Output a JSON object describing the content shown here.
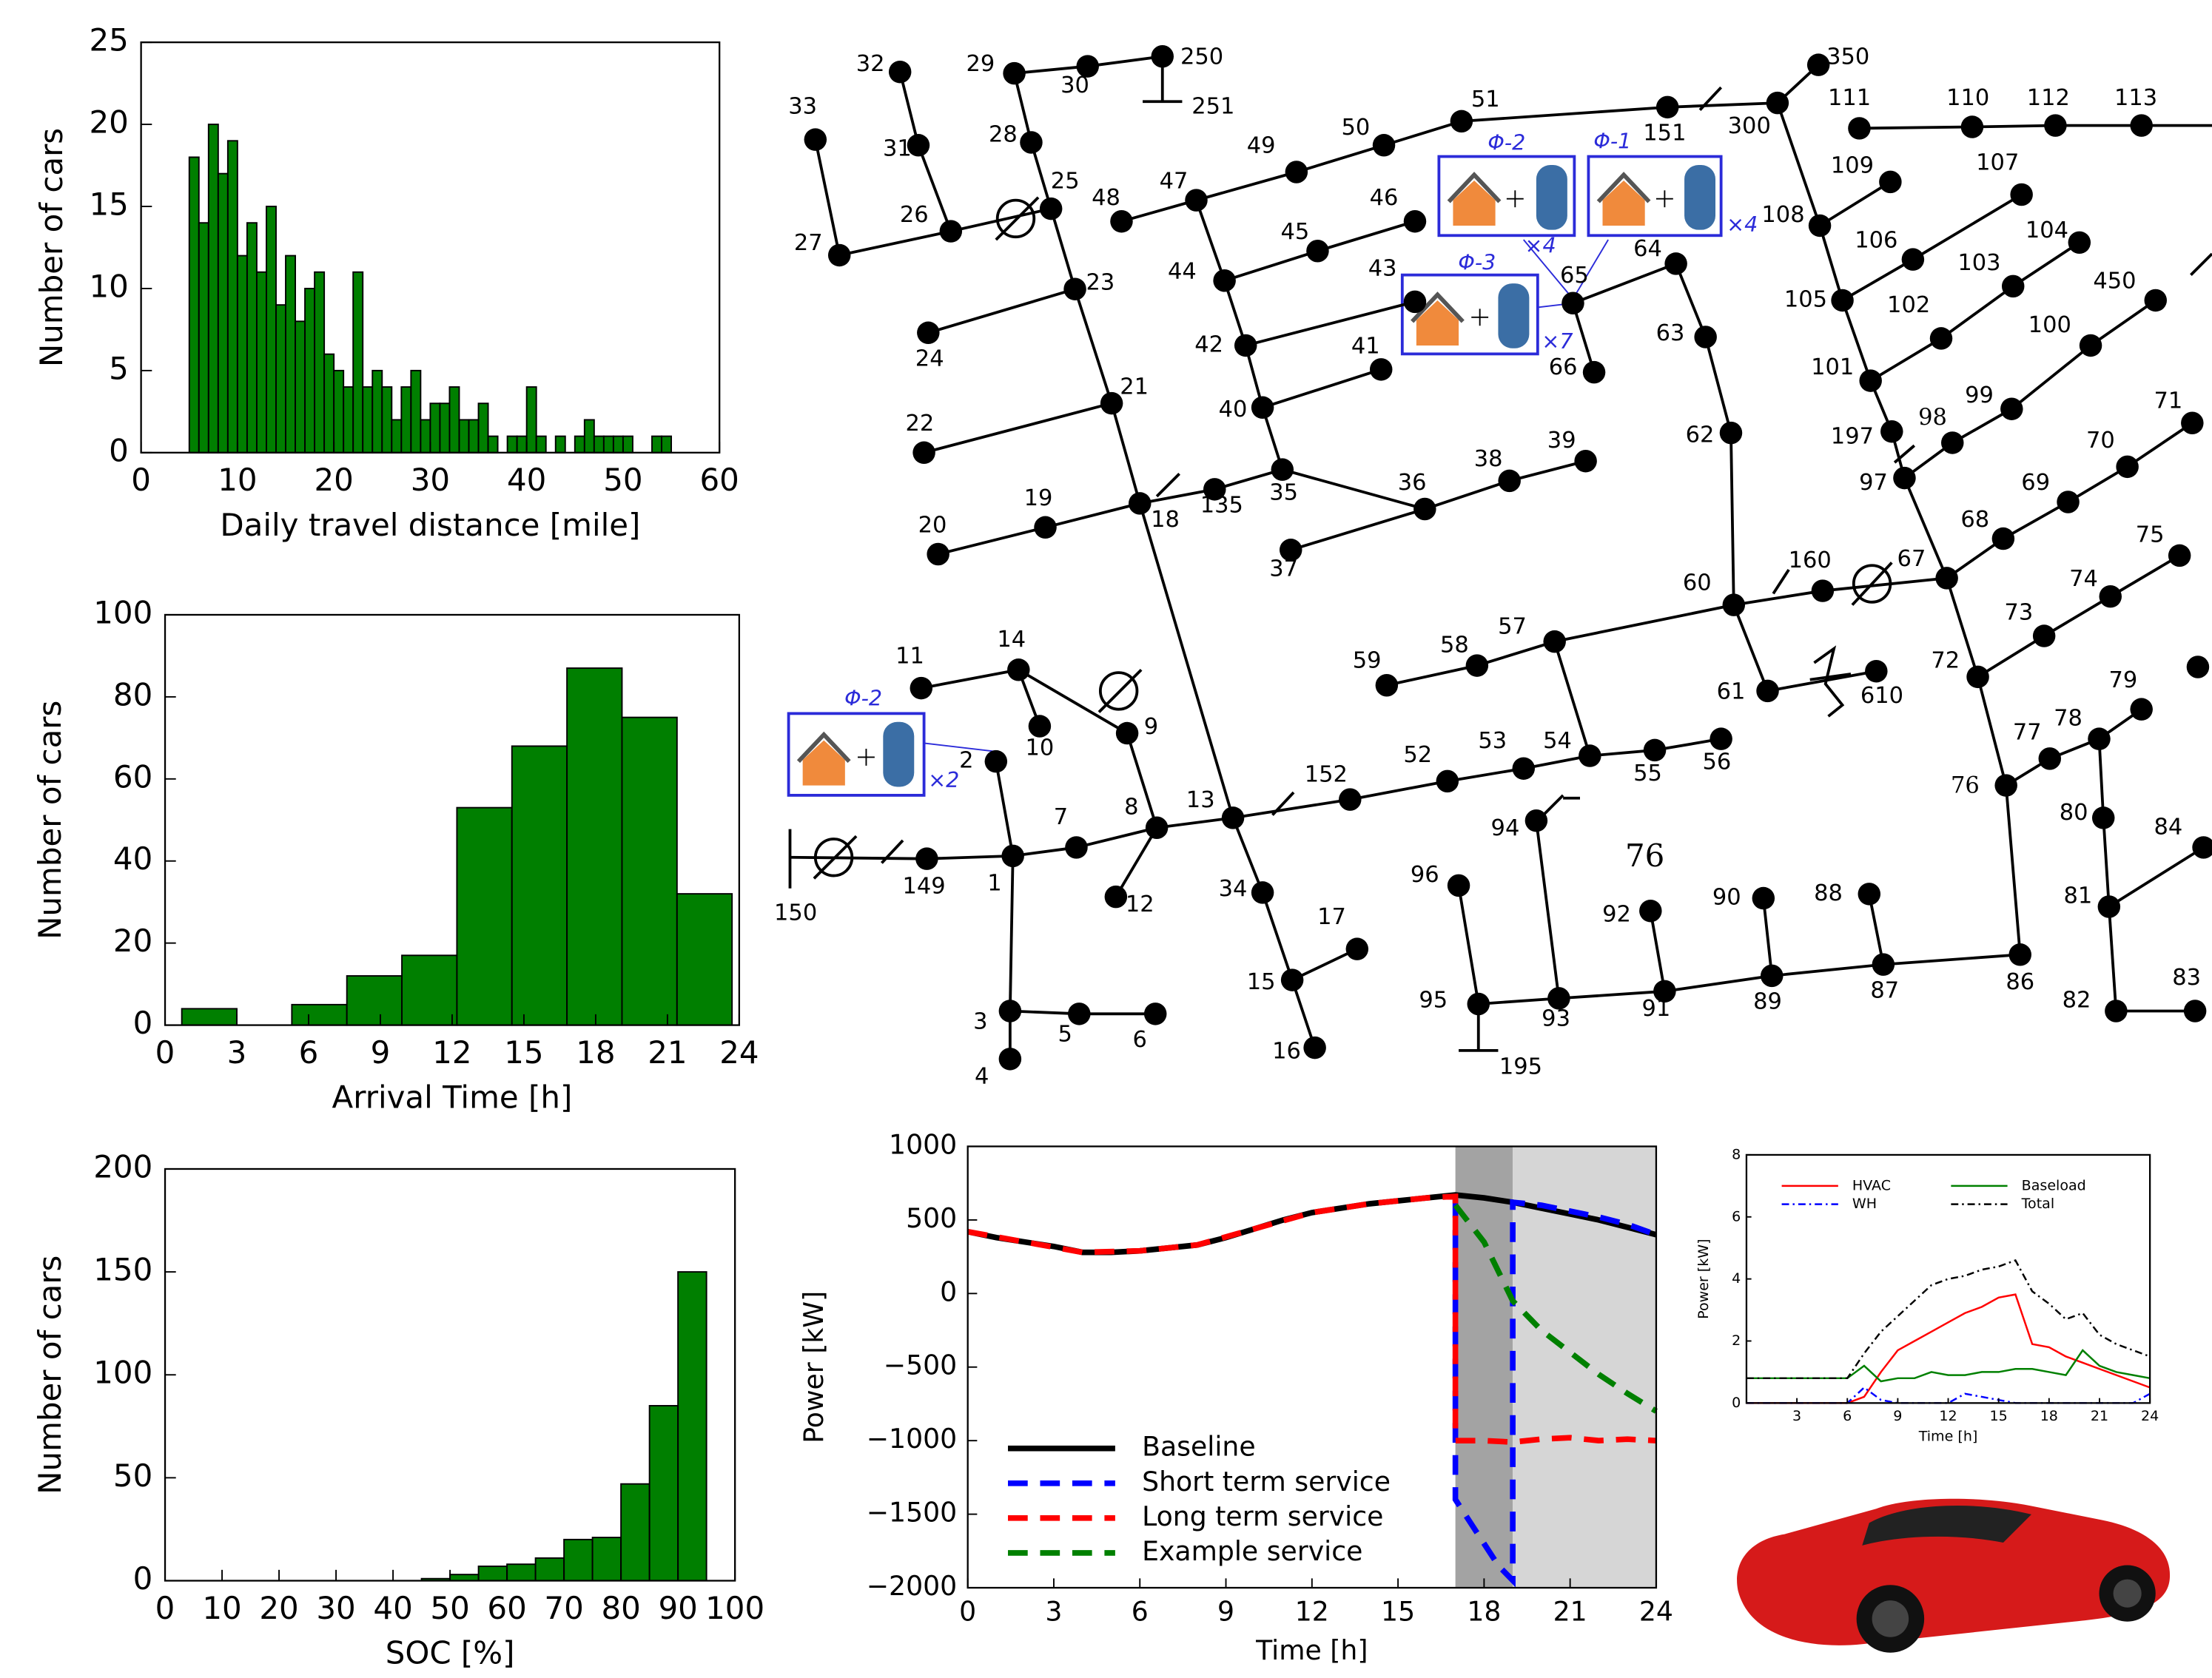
{
  "chart_data": [
    {
      "type": "histogram",
      "xlabel": "Daily travel distance [mile]",
      "ylabel": "Number of cars",
      "color": "#007f00",
      "bins": [
        5,
        6,
        7,
        8,
        9,
        10,
        11,
        12,
        13,
        14,
        15,
        16,
        17,
        18,
        19,
        20,
        21,
        22,
        23,
        24,
        25,
        26,
        27,
        28,
        29,
        30,
        31,
        32,
        33,
        34,
        35,
        36,
        37,
        38,
        39,
        40,
        41,
        42,
        43,
        44,
        45,
        46,
        47,
        48,
        49,
        50,
        51,
        52,
        53,
        54,
        55
      ],
      "values": [
        18,
        14,
        20,
        17,
        19,
        12,
        14,
        11,
        15,
        9,
        12,
        8,
        10,
        11,
        6,
        5,
        4,
        11,
        4,
        5,
        4,
        2,
        4,
        5,
        2,
        3,
        3,
        4,
        2,
        2,
        3,
        1,
        0,
        1,
        1,
        4,
        1,
        0,
        1,
        0,
        1,
        2,
        1,
        1,
        1,
        1,
        0,
        0,
        1,
        1
      ],
      "xlim": [
        0,
        60
      ],
      "xticks": [
        0,
        10,
        20,
        30,
        40,
        50,
        60
      ],
      "ylim": [
        0,
        25
      ],
      "yticks": [
        0,
        5,
        10,
        15,
        20,
        25
      ]
    },
    {
      "type": "histogram",
      "xlabel": "Arrival Time [h]",
      "ylabel": "Number of cars",
      "color": "#007f00",
      "bins": [
        0.7,
        3.0,
        5.3,
        7.6,
        9.9,
        12.2,
        14.5,
        16.8,
        19.1,
        21.4,
        23.7
      ],
      "values": [
        4,
        0,
        5,
        12,
        17,
        53,
        68,
        87,
        75,
        32
      ],
      "xlim": [
        0,
        24
      ],
      "xticks": [
        0,
        3,
        6,
        9,
        12,
        15,
        18,
        21,
        24
      ],
      "ylim": [
        0,
        100
      ],
      "yticks": [
        0,
        20,
        40,
        60,
        80,
        100
      ]
    },
    {
      "type": "histogram",
      "xlabel": "SOC [%]",
      "ylabel": "Number of cars",
      "color": "#007f00",
      "bins": [
        45,
        50,
        55,
        60,
        65,
        70,
        75,
        80,
        85,
        90,
        95
      ],
      "values": [
        1,
        3,
        7,
        8,
        11,
        20,
        21,
        47,
        85,
        150
      ],
      "xlim": [
        0,
        100
      ],
      "xticks": [
        0,
        10,
        20,
        30,
        40,
        50,
        60,
        70,
        80,
        90,
        100
      ],
      "ylim": [
        0,
        200
      ],
      "yticks": [
        0,
        50,
        100,
        150,
        200
      ]
    },
    {
      "type": "line",
      "xlabel": "Time [h]",
      "ylabel": "Power [kW]",
      "legend": "lower left",
      "spans": [
        {
          "from": 17,
          "to": 19,
          "color": "#a3a3a3"
        },
        {
          "from": 19,
          "to": 24,
          "color": "#d6d6d6"
        }
      ],
      "xlim": [
        0,
        24
      ],
      "xticks": [
        0,
        3,
        6,
        9,
        12,
        15,
        18,
        21,
        24
      ],
      "ylim": [
        -2000,
        1000
      ],
      "yticks": [
        {
          "value": -2000,
          "label": "−2000"
        },
        {
          "value": -1500,
          "label": "−1500"
        },
        {
          "value": -1000,
          "label": "−1000"
        },
        {
          "value": -500,
          "label": "−500"
        },
        0,
        500,
        1000
      ],
      "series": [
        {
          "name": "Baseline",
          "color": "#000000",
          "line_style": "solid",
          "x": [
            0,
            1,
            2,
            3,
            4,
            5,
            6,
            7,
            8,
            9,
            10,
            11,
            12,
            13,
            14,
            15,
            16,
            17,
            18,
            19,
            20,
            21,
            22,
            23,
            24
          ],
          "values": [
            420,
            380,
            350,
            320,
            280,
            280,
            290,
            310,
            330,
            380,
            440,
            500,
            550,
            580,
            610,
            630,
            650,
            670,
            650,
            620,
            580,
            540,
            500,
            450,
            400
          ]
        },
        {
          "name": "Short term service",
          "color": "#0000ff",
          "line_style": "dashed",
          "x": [
            17,
            17,
            17.5,
            18,
            18.5,
            19,
            19,
            20,
            21,
            22,
            23,
            24
          ],
          "values": [
            650,
            -1400,
            -1550,
            -1700,
            -1850,
            -1950,
            620,
            600,
            560,
            520,
            470,
            400
          ]
        },
        {
          "name": "Long term service",
          "color": "#ff0000",
          "line_style": "dashed",
          "x": [
            0,
            2,
            4,
            6,
            8,
            10,
            12,
            14,
            16,
            17,
            17,
            18,
            19,
            20,
            21,
            22,
            23,
            24
          ],
          "values": [
            420,
            350,
            280,
            290,
            330,
            440,
            550,
            610,
            650,
            660,
            -1000,
            -1000,
            -1010,
            -990,
            -980,
            -1000,
            -990,
            -1000
          ]
        },
        {
          "name": "Example service",
          "color": "#008000",
          "line_style": "dashed",
          "x": [
            17,
            18,
            19,
            20,
            21,
            22,
            23,
            24
          ],
          "values": [
            600,
            350,
            -50,
            -250,
            -400,
            -550,
            -680,
            -800
          ]
        }
      ]
    },
    {
      "type": "line",
      "xlabel": "Time [h]",
      "ylabel": "Power [kW]",
      "legend": "upper center",
      "legend_columns": 2,
      "x": [
        0,
        1,
        2,
        3,
        4,
        5,
        6,
        7,
        8,
        9,
        10,
        11,
        12,
        13,
        14,
        15,
        16,
        17,
        18,
        19,
        20,
        21,
        22,
        23,
        24
      ],
      "xlim": [
        0,
        24
      ],
      "xticks": [
        3,
        6,
        9,
        12,
        15,
        18,
        21,
        24
      ],
      "ylim": [
        0,
        8
      ],
      "yticks": [
        0,
        2,
        4,
        6,
        8
      ],
      "series": [
        {
          "name": "HVAC",
          "color": "#ff0000",
          "line_style": "solid",
          "values": [
            0,
            0,
            0,
            0,
            0,
            0,
            0,
            0.2,
            1,
            1.7,
            2,
            2.3,
            2.6,
            2.9,
            3.1,
            3.4,
            3.5,
            1.9,
            1.8,
            1.5,
            1.3,
            1.1,
            0.9,
            0.7,
            0.5
          ]
        },
        {
          "name": "WH",
          "color": "#0000ff",
          "line_style": "dashdot",
          "values": [
            0,
            0,
            0,
            0,
            0,
            0,
            0,
            0.5,
            0.1,
            0,
            0,
            0,
            0,
            0.3,
            0.2,
            0.1,
            0,
            0,
            0,
            0,
            0,
            0,
            0,
            0,
            0.3
          ]
        },
        {
          "name": "Baseload",
          "color": "#008000",
          "line_style": "solid",
          "values": [
            0.8,
            0.8,
            0.8,
            0.8,
            0.8,
            0.8,
            0.8,
            1.2,
            0.7,
            0.8,
            0.8,
            1,
            0.9,
            0.9,
            1,
            1,
            1.1,
            1.1,
            1,
            0.9,
            1.7,
            1.2,
            1,
            0.9,
            0.8
          ]
        },
        {
          "name": "Total",
          "color": "#000000",
          "line_style": "dashdot",
          "values": [
            0.8,
            0.8,
            0.8,
            0.8,
            0.8,
            0.8,
            0.8,
            1.6,
            2.3,
            2.8,
            3.3,
            3.8,
            4.0,
            4.1,
            4.3,
            4.4,
            4.6,
            3.6,
            3.2,
            2.7,
            2.9,
            2.2,
            1.9,
            1.7,
            1.5
          ]
        }
      ]
    }
  ],
  "diagram": {
    "nodes": [
      "1",
      "2",
      "3",
      "4",
      "5",
      "6",
      "7",
      "8",
      "9",
      "10",
      "11",
      "12",
      "13",
      "14",
      "15",
      "16",
      "17",
      "18",
      "19",
      "20",
      "21",
      "22",
      "23",
      "24",
      "25",
      "26",
      "27",
      "28",
      "29",
      "30",
      "31",
      "32",
      "33",
      "34",
      "35",
      "36",
      "37",
      "38",
      "39",
      "40",
      "41",
      "42",
      "43",
      "44",
      "45",
      "46",
      "47",
      "48",
      "49",
      "50",
      "51",
      "52",
      "53",
      "54",
      "55",
      "56",
      "57",
      "58",
      "59",
      "60",
      "61",
      "62",
      "63",
      "64",
      "65",
      "66",
      "67",
      "68",
      "69",
      "70",
      "71",
      "72",
      "73",
      "74",
      "75",
      "76",
      "77",
      "78",
      "79",
      "80",
      "81",
      "82",
      "83",
      "84",
      "86",
      "87",
      "88",
      "89",
      "90",
      "91",
      "92",
      "93",
      "94",
      "95",
      "96",
      "97",
      "98",
      "99",
      "100",
      "101",
      "102",
      "103",
      "104",
      "105",
      "106",
      "107",
      "108",
      "109",
      "110",
      "111",
      "112",
      "113",
      "135",
      "149",
      "150",
      "151",
      "152",
      "160",
      "195",
      "197",
      "250",
      "251",
      "300",
      "350",
      "450",
      "610"
    ],
    "boxes": [
      {
        "phase": "Φ-2",
        "count": "×4"
      },
      {
        "phase": "Φ-1",
        "count": "×4"
      },
      {
        "phase": "Φ-3",
        "count": "×7"
      },
      {
        "phase": "Φ-2",
        "count": "×2"
      }
    ],
    "note": "76"
  }
}
